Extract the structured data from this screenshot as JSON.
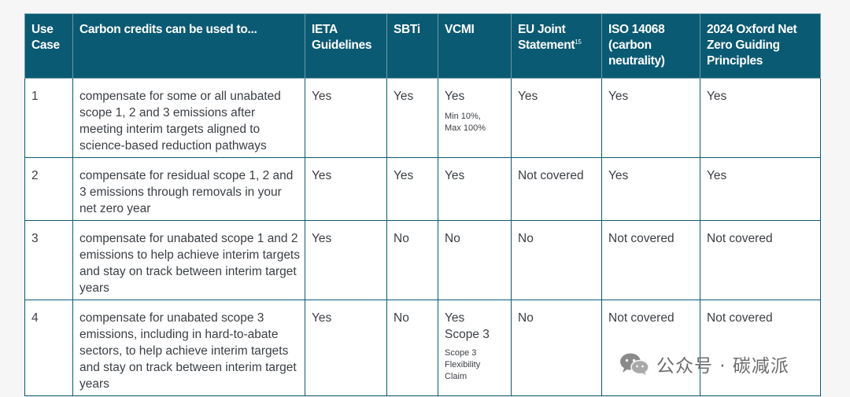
{
  "table": {
    "headers": {
      "use_case": "Use Case",
      "purpose": "Carbon credits can be used to...",
      "ieta": "IETA Guidelines",
      "sbti": "SBTi",
      "vcmi": "VCMI",
      "eu": "EU Joint Statement",
      "eu_sup": "15",
      "iso": "ISO 14068 (carbon neutrality)",
      "oxford": "2024 Oxford Net Zero Guiding Principles"
    },
    "rows": [
      {
        "id": "1",
        "purpose": "compensate for some or all unabated scope 1, 2 and 3 emissions after meeting interim targets aligned to science-based reduction pathways",
        "ieta": "Yes",
        "sbti": "Yes",
        "vcmi": "Yes",
        "vcmi_note_1": "Min 10%,",
        "vcmi_note_2": "Max 100%",
        "eu": "Yes",
        "iso": "Yes",
        "oxford": "Yes"
      },
      {
        "id": "2",
        "purpose": "compensate for residual scope 1, 2 and 3 emissions through removals in your net zero year",
        "ieta": "Yes",
        "sbti": "Yes",
        "vcmi": "Yes",
        "eu": "Not covered",
        "iso": "Yes",
        "oxford": "Yes"
      },
      {
        "id": "3",
        "purpose": "compensate for unabated scope 1 and 2 emissions to help achieve interim targets and stay on track between interim target years",
        "ieta": "Yes",
        "sbti": "No",
        "vcmi": "No",
        "eu": "No",
        "iso": "Not covered",
        "oxford": "Not covered"
      },
      {
        "id": "4",
        "purpose": "compensate for unabated scope 3 emissions, including in hard-to-abate sectors, to help achieve interim targets and stay on track between interim target years",
        "ieta": "Yes",
        "sbti": "No",
        "vcmi": "Yes",
        "vcmi_line_2": "Scope 3",
        "vcmi_note_1": "Scope 3",
        "vcmi_note_2": "Flexibility",
        "vcmi_note_3": "Claim",
        "eu": "No",
        "iso": "Not covered",
        "oxford": "Not covered"
      }
    ]
  },
  "watermark": {
    "text": "公众号 · 碳减派",
    "icon": "wechat-icon"
  },
  "colors": {
    "header_bg": "#0b5a73",
    "header_text": "#ffffff",
    "body_text": "#3a3f44",
    "border": "#0b5a73"
  }
}
